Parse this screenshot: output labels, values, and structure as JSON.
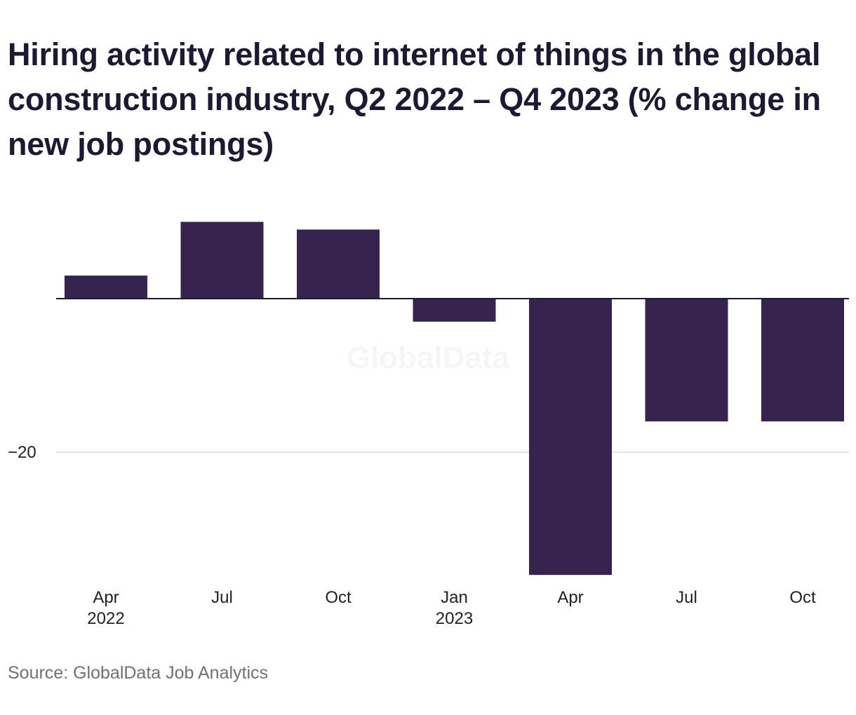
{
  "chart_data": {
    "type": "bar",
    "title": "Hiring activity related to internet of things in the global construction industry, Q2 2022 – Q4 2023 (% change in new job postings)",
    "xlabel": "",
    "ylabel": "",
    "categories": [
      "Apr 2022",
      "Jul",
      "Oct",
      "Jan 2023",
      "Apr",
      "Jul",
      "Oct"
    ],
    "tick_labels": [
      [
        "Apr",
        "2022"
      ],
      [
        "Jul"
      ],
      [
        "Oct"
      ],
      [
        "Jan",
        "2023"
      ],
      [
        "Apr"
      ],
      [
        "Jul"
      ],
      [
        "Oct"
      ]
    ],
    "values": [
      3,
      10,
      9,
      -3,
      -36,
      -16,
      -16
    ],
    "ylim": [
      -36,
      10
    ],
    "yticks": [
      {
        "value": 0,
        "label": ""
      },
      {
        "value": -20,
        "label": "−20"
      }
    ],
    "grid": true,
    "bar_color": "#36244f",
    "source": "Source: GlobalData Job Analytics",
    "watermark": "GlobalData"
  }
}
